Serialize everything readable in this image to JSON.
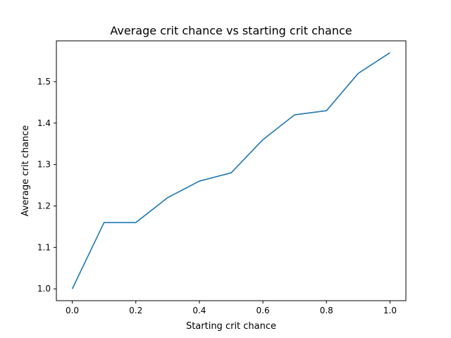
{
  "chart_data": {
    "type": "line",
    "title": "Average crit chance vs starting crit chance",
    "xlabel": "Starting crit chance",
    "ylabel": "Average crit chance",
    "x": [
      0.0,
      0.1,
      0.2,
      0.3,
      0.4,
      0.5,
      0.6,
      0.7,
      0.8,
      0.9,
      1.0
    ],
    "series": [
      {
        "values": [
          1.0,
          1.16,
          1.16,
          1.22,
          1.26,
          1.28,
          1.36,
          1.42,
          1.43,
          1.52,
          1.57
        ],
        "color": "#1f77b4"
      }
    ],
    "xlim": [
      -0.05,
      1.05
    ],
    "ylim": [
      0.9715,
      1.5985
    ],
    "xticks": [
      0.0,
      0.2,
      0.4,
      0.6,
      0.8,
      1.0
    ],
    "xtick_labels": [
      "0.0",
      "0.2",
      "0.4",
      "0.6",
      "0.8",
      "1.0"
    ],
    "yticks": [
      1.0,
      1.1,
      1.2,
      1.3,
      1.4,
      1.5
    ],
    "ytick_labels": [
      "1.0",
      "1.1",
      "1.2",
      "1.3",
      "1.4",
      "1.5"
    ],
    "grid": false,
    "legend": "none"
  }
}
